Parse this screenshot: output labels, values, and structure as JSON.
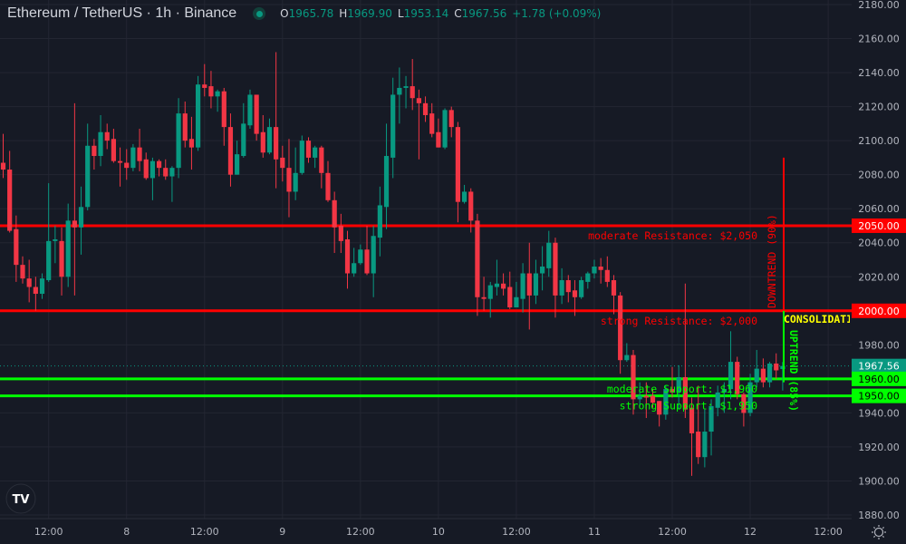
{
  "header": {
    "title": "Ethereum / TetherUS · 1h · Binance",
    "status_color": "#089981",
    "open_label": "O",
    "open": "1965.78",
    "high_label": "H",
    "high": "1969.90",
    "low_label": "L",
    "low": "1953.14",
    "close_label": "C",
    "close": "1967.56",
    "change": "+1.78 (+0.09%)"
  },
  "colors": {
    "background": "#161a25",
    "grid": "#232632",
    "up": "#089981",
    "down": "#f23645",
    "resistance": "#ff0000",
    "support": "#00ff00",
    "consolidation": "#ffff00"
  },
  "chart_data": {
    "type": "candlestick",
    "interval": "1h",
    "ylim": [
      1877,
      2182
    ],
    "y_ticks": [
      "2180.00",
      "2160.00",
      "2140.00",
      "2120.00",
      "2100.00",
      "2080.00",
      "2060.00",
      "2040.00",
      "2020.00",
      "2000.00",
      "1980.00",
      "1960.00",
      "1940.00",
      "1920.00",
      "1900.00",
      "1880.00"
    ],
    "x_ticks": [
      "12:00",
      "8",
      "12:00",
      "9",
      "12:00",
      "10",
      "12:00",
      "11",
      "12:00",
      "12",
      "12:00"
    ],
    "candles": [
      [
        2087,
        2104,
        2078,
        2083
      ],
      [
        2083,
        2094,
        2046,
        2047
      ],
      [
        2048,
        2056,
        2017,
        2027
      ],
      [
        2027,
        2032,
        2016,
        2019
      ],
      [
        2019,
        2030,
        2005,
        2014
      ],
      [
        2014,
        2020,
        2000,
        2010
      ],
      [
        2010,
        2022,
        2007,
        2019
      ],
      [
        2018,
        2075,
        2017,
        2041
      ],
      [
        2041,
        2050,
        2028,
        2042
      ],
      [
        2041,
        2049,
        2009,
        2020
      ],
      [
        2020,
        2063,
        2014,
        2053
      ],
      [
        2053,
        2122,
        2009,
        2049
      ],
      [
        2049,
        2073,
        2033,
        2061
      ],
      [
        2061,
        2110,
        2059,
        2097
      ],
      [
        2097,
        2101,
        2083,
        2091
      ],
      [
        2091,
        2115,
        2085,
        2105
      ],
      [
        2105,
        2110,
        2095,
        2100
      ],
      [
        2101,
        2107,
        2087,
        2088
      ],
      [
        2088,
        2096,
        2073,
        2087
      ],
      [
        2087,
        2095,
        2077,
        2084
      ],
      [
        2084,
        2098,
        2082,
        2096
      ],
      [
        2096,
        2107,
        2082,
        2088
      ],
      [
        2089,
        2093,
        2077,
        2078
      ],
      [
        2078,
        2090,
        2065,
        2088
      ],
      [
        2088,
        2089,
        2079,
        2084
      ],
      [
        2084,
        2089,
        2077,
        2079
      ],
      [
        2079,
        2085,
        2064,
        2084
      ],
      [
        2084,
        2125,
        2078,
        2116
      ],
      [
        2116,
        2123,
        2096,
        2100
      ],
      [
        2101,
        2114,
        2083,
        2096
      ],
      [
        2096,
        2138,
        2094,
        2133
      ],
      [
        2133,
        2145,
        2126,
        2131
      ],
      [
        2132,
        2141,
        2119,
        2126
      ],
      [
        2126,
        2130,
        2117,
        2129
      ],
      [
        2129,
        2131,
        2097,
        2108
      ],
      [
        2108,
        2116,
        2073,
        2080
      ],
      [
        2080,
        2100,
        2080,
        2092
      ],
      [
        2091,
        2122,
        2090,
        2110
      ],
      [
        2109,
        2130,
        2107,
        2127
      ],
      [
        2127,
        2127,
        2100,
        2104
      ],
      [
        2105,
        2115,
        2090,
        2093
      ],
      [
        2093,
        2113,
        2092,
        2108
      ],
      [
        2108,
        2152,
        2072,
        2089
      ],
      [
        2090,
        2097,
        2076,
        2084
      ],
      [
        2084,
        2101,
        2055,
        2070
      ],
      [
        2070,
        2096,
        2065,
        2081
      ],
      [
        2081,
        2103,
        2080,
        2100
      ],
      [
        2100,
        2102,
        2087,
        2090
      ],
      [
        2090,
        2097,
        2084,
        2096
      ],
      [
        2096,
        2097,
        2072,
        2081
      ],
      [
        2081,
        2088,
        2064,
        2065
      ],
      [
        2065,
        2070,
        2034,
        2049
      ],
      [
        2050,
        2057,
        2034,
        2041
      ],
      [
        2042,
        2047,
        2013,
        2022
      ],
      [
        2022,
        2037,
        2020,
        2028
      ],
      [
        2028,
        2039,
        2027,
        2036
      ],
      [
        2036,
        2050,
        2021,
        2022
      ],
      [
        2022,
        2050,
        2008,
        2044
      ],
      [
        2043,
        2073,
        2032,
        2062
      ],
      [
        2061,
        2110,
        2048,
        2091
      ],
      [
        2090,
        2137,
        2078,
        2127
      ],
      [
        2127,
        2143,
        2110,
        2131
      ],
      [
        2131,
        2138,
        2119,
        2132
      ],
      [
        2132,
        2148,
        2118,
        2125
      ],
      [
        2125,
        2130,
        2089,
        2122
      ],
      [
        2122,
        2126,
        2111,
        2115
      ],
      [
        2116,
        2122,
        2102,
        2104
      ],
      [
        2105,
        2113,
        2096,
        2096
      ],
      [
        2096,
        2119,
        2095,
        2118
      ],
      [
        2118,
        2120,
        2102,
        2108
      ],
      [
        2108,
        2111,
        2052,
        2064
      ],
      [
        2064,
        2074,
        2063,
        2070
      ],
      [
        2070,
        2072,
        2046,
        2053
      ],
      [
        2053,
        2057,
        1997,
        2008
      ],
      [
        2008,
        2020,
        2000,
        2007
      ],
      [
        2007,
        2017,
        1996,
        2015
      ],
      [
        2014,
        2030,
        2009,
        2016
      ],
      [
        2016,
        2022,
        2009,
        2013
      ],
      [
        2014,
        2023,
        2001,
        2002
      ],
      [
        2002,
        2017,
        2002,
        2008
      ],
      [
        2007,
        2028,
        1999,
        2022
      ],
      [
        2022,
        2040,
        1989,
        2009
      ],
      [
        2009,
        2030,
        2004,
        2022
      ],
      [
        2022,
        2038,
        2012,
        2026
      ],
      [
        2025,
        2047,
        2020,
        2040
      ],
      [
        2040,
        2043,
        1996,
        2009
      ],
      [
        2009,
        2025,
        2004,
        2018
      ],
      [
        2018,
        2021,
        2005,
        2011
      ],
      [
        2012,
        2018,
        1997,
        2008
      ],
      [
        2008,
        2020,
        2007,
        2018
      ],
      [
        2017,
        2023,
        2013,
        2022
      ],
      [
        2022,
        2030,
        2019,
        2026
      ],
      [
        2026,
        2031,
        2016,
        2024
      ],
      [
        2024,
        2032,
        2014,
        2017
      ],
      [
        2018,
        2021,
        1998,
        2009
      ],
      [
        2009,
        2011,
        1963,
        1971
      ],
      [
        1971,
        1981,
        1970,
        1974
      ],
      [
        1974,
        1977,
        1939,
        1948
      ],
      [
        1948,
        1958,
        1944,
        1950
      ],
      [
        1950,
        1958,
        1937,
        1949
      ],
      [
        1950,
        1954,
        1943,
        1946
      ],
      [
        1947,
        1947,
        1932,
        1939
      ],
      [
        1939,
        1956,
        1936,
        1954
      ],
      [
        1954,
        1967,
        1949,
        1952
      ],
      [
        1952,
        1968,
        1942,
        1961
      ],
      [
        1961,
        2016,
        1937,
        1942
      ],
      [
        1943,
        1949,
        1903,
        1928
      ],
      [
        1929,
        1956,
        1910,
        1914
      ],
      [
        1914,
        1942,
        1908,
        1929
      ],
      [
        1929,
        1948,
        1915,
        1944
      ],
      [
        1943,
        1956,
        1938,
        1952
      ],
      [
        1952,
        1958,
        1940,
        1954
      ],
      [
        1954,
        1988,
        1948,
        1970
      ],
      [
        1970,
        1973,
        1948,
        1951
      ],
      [
        1951,
        1952,
        1932,
        1940
      ],
      [
        1940,
        1963,
        1938,
        1958
      ],
      [
        1958,
        1977,
        1955,
        1966
      ],
      [
        1966,
        1972,
        1955,
        1958
      ],
      [
        1958,
        1970,
        1955,
        1969
      ],
      [
        1969,
        1975,
        1960,
        1965
      ],
      [
        1965.78,
        1969.9,
        1953.14,
        1967.56
      ]
    ],
    "last_price": 1967.56,
    "levels": [
      {
        "price": 2050,
        "type": "resistance",
        "label": "moderate Resistance: $2,050",
        "tag": "2050.00"
      },
      {
        "price": 2000,
        "type": "resistance",
        "label": "strong Resistance: $2,000",
        "tag": "2000.00"
      },
      {
        "price": 1960,
        "type": "support",
        "label": "moderate Support: $1,960",
        "tag": "1960.00"
      },
      {
        "price": 1950,
        "type": "support",
        "label": "strong Support: $1,950",
        "tag": "1950.00"
      }
    ],
    "last_price_tag": "1967.56",
    "annotations": {
      "downtrend": {
        "label": "DOWNTREND (90%)",
        "from": 2090,
        "to": 2000
      },
      "uptrend": {
        "label": "UPTREND (85%)",
        "from": 2000,
        "to": 1958
      },
      "consolidation": {
        "label": "CONSOLIDATION"
      }
    }
  },
  "footer": {
    "logo": "TV",
    "settings_icon": "gear-icon"
  }
}
